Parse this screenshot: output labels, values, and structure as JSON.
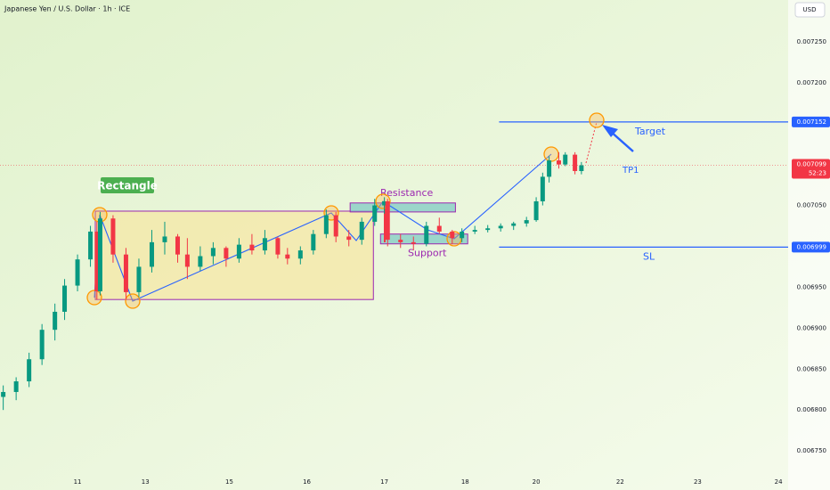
{
  "chart_data": {
    "type": "candlestick",
    "title": "Japanese Yen / U.S. Dollar · 1h · ICE",
    "currency": "USD",
    "up_color": "#089981",
    "down_color": "#f23645",
    "grid": false,
    "xlim": [
      0,
      244
    ],
    "ylim": [
      0.006724,
      0.007301
    ],
    "xticks": [
      {
        "value": 24,
        "label": "11"
      },
      {
        "value": 45,
        "label": "13"
      },
      {
        "value": 71,
        "label": "15"
      },
      {
        "value": 95,
        "label": "16"
      },
      {
        "value": 119,
        "label": "17"
      },
      {
        "value": 144,
        "label": "18"
      },
      {
        "value": 166,
        "label": "20"
      },
      {
        "value": 192,
        "label": "22"
      },
      {
        "value": 216,
        "label": "23"
      },
      {
        "value": 241,
        "label": "24"
      }
    ],
    "yticks": [
      {
        "value": 0.00725,
        "label": "0.007250"
      },
      {
        "value": 0.0072,
        "label": "0.007200"
      },
      {
        "value": 0.00705,
        "label": "0.007050"
      },
      {
        "value": 0.00695,
        "label": "0.006950"
      },
      {
        "value": 0.0069,
        "label": "0.006900"
      },
      {
        "value": 0.00685,
        "label": "0.006850"
      },
      {
        "value": 0.0068,
        "label": "0.006800"
      },
      {
        "value": 0.00675,
        "label": "0.006750"
      }
    ],
    "x": [
      1,
      5,
      9,
      13,
      17,
      20,
      24,
      28,
      30,
      31,
      35,
      39,
      43,
      47,
      51,
      55,
      58,
      62,
      66,
      70,
      74,
      78,
      82,
      86,
      89,
      93,
      97,
      101,
      104,
      108,
      112,
      116,
      119,
      120,
      124,
      128,
      132,
      136,
      140,
      143,
      147,
      151,
      155,
      159,
      163,
      166,
      168,
      170,
      173,
      175,
      178,
      180
    ],
    "open": [
      0.006816,
      0.006822,
      0.006835,
      0.006862,
      0.006898,
      0.00692,
      0.006952,
      0.006984,
      0.007018,
      0.006945,
      0.007034,
      0.00699,
      0.006944,
      0.006975,
      0.007005,
      0.007012,
      0.00699,
      0.006975,
      0.006988,
      0.006998,
      0.006985,
      0.007002,
      0.006995,
      0.00701,
      0.00699,
      0.006985,
      0.006995,
      0.007015,
      0.007038,
      0.007012,
      0.007008,
      0.00703,
      0.00705,
      0.007055,
      0.007008,
      0.007005,
      0.007003,
      0.007025,
      0.007018,
      0.00701,
      0.007018,
      0.00702,
      0.007022,
      0.007025,
      0.007028,
      0.007032,
      0.007055,
      0.007085,
      0.007105,
      0.0071,
      0.007112,
      0.007092
    ],
    "high": [
      0.00683,
      0.00684,
      0.00687,
      0.006905,
      0.00693,
      0.00696,
      0.00699,
      0.007025,
      0.00703,
      0.007042,
      0.007038,
      0.006998,
      0.006985,
      0.00702,
      0.00703,
      0.007015,
      0.00701,
      0.007,
      0.007005,
      0.007,
      0.00701,
      0.007015,
      0.00702,
      0.007012,
      0.006998,
      0.007,
      0.00702,
      0.007045,
      0.007042,
      0.00702,
      0.007035,
      0.007058,
      0.00706,
      0.007058,
      0.007015,
      0.007012,
      0.00703,
      0.007035,
      0.00702,
      0.007022,
      0.007025,
      0.007026,
      0.007028,
      0.00703,
      0.007036,
      0.00706,
      0.00709,
      0.00711,
      0.007115,
      0.007115,
      0.007115,
      0.007103
    ],
    "low": [
      0.0068,
      0.006812,
      0.006828,
      0.006855,
      0.006885,
      0.00691,
      0.006945,
      0.006975,
      0.006935,
      0.00694,
      0.00698,
      0.006935,
      0.006938,
      0.006968,
      0.00699,
      0.00698,
      0.00696,
      0.00697,
      0.006978,
      0.006975,
      0.00698,
      0.00699,
      0.00699,
      0.006985,
      0.006978,
      0.006978,
      0.00699,
      0.00701,
      0.007005,
      0.007,
      0.007002,
      0.007025,
      0.00704,
      0.007,
      0.006998,
      0.006995,
      0.007,
      0.007015,
      0.007003,
      0.007005,
      0.007015,
      0.007017,
      0.007018,
      0.00702,
      0.007024,
      0.00703,
      0.00705,
      0.007078,
      0.007095,
      0.007098,
      0.007088,
      0.007088
    ],
    "close": [
      0.006822,
      0.006835,
      0.006862,
      0.006898,
      0.00692,
      0.006952,
      0.006984,
      0.007018,
      0.006945,
      0.007034,
      0.00699,
      0.006944,
      0.006975,
      0.007005,
      0.007012,
      0.00699,
      0.006975,
      0.006988,
      0.006998,
      0.006985,
      0.007002,
      0.006995,
      0.00701,
      0.00699,
      0.006985,
      0.006995,
      0.007015,
      0.007038,
      0.007012,
      0.007008,
      0.00703,
      0.00705,
      0.007055,
      0.007008,
      0.007005,
      0.007003,
      0.007025,
      0.007018,
      0.00701,
      0.007018,
      0.00702,
      0.007022,
      0.007025,
      0.007028,
      0.007032,
      0.007055,
      0.007085,
      0.007105,
      0.0071,
      0.007112,
      0.007092,
      0.007099
    ],
    "last_price": {
      "value": 0.007099,
      "countdown": "52:23",
      "color": "#f23645"
    },
    "zones": [
      {
        "label": "Rectangle",
        "x": [
          29.5,
          115.6
        ],
        "y": [
          0.006935,
          0.007043
        ],
        "fill": "#f6e7a6",
        "stroke": "#9c27b0",
        "label_color": "#4caf50"
      },
      {
        "label": "Resistance",
        "x": [
          108.4,
          141
        ],
        "y": [
          0.007042,
          0.007053
        ],
        "fill": "#80cbc4",
        "stroke": "#9c27b0",
        "label_color": "#9c27b0"
      },
      {
        "label": "Support",
        "x": [
          117.8,
          144.8
        ],
        "y": [
          0.007003,
          0.007015
        ],
        "fill": "#80cbc4",
        "stroke": "#9c27b0",
        "label_color": "#9c27b0"
      }
    ],
    "levels": [
      {
        "label": "Target",
        "value": 0.007152,
        "x_start": 154.5,
        "color": "#2962ff"
      },
      {
        "label": "SL",
        "value": 0.006999,
        "x_start": 154.5,
        "color": "#2962ff"
      }
    ],
    "annotation": "TP1"
  }
}
